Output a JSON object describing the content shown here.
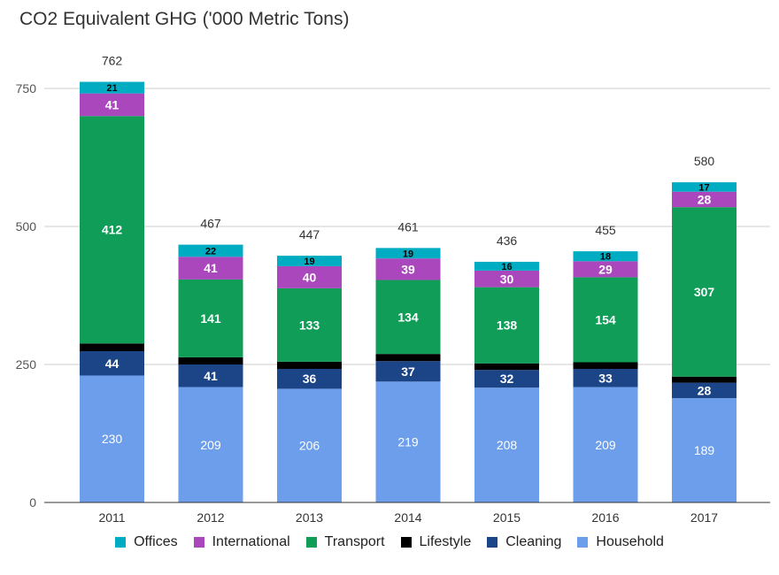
{
  "title": "CO2 Equivalent GHG ('000 Metric Tons)",
  "chart_data": {
    "type": "bar",
    "stacked": true,
    "title": "CO2 Equivalent GHG ('000 Metric Tons)",
    "xlabel": "",
    "ylabel": "",
    "categories": [
      "2011",
      "2012",
      "2013",
      "2014",
      "2015",
      "2016",
      "2017"
    ],
    "ylim": [
      0,
      800
    ],
    "yticks": [
      0,
      250,
      500,
      750
    ],
    "totals": [
      762,
      467,
      447,
      461,
      436,
      455,
      580
    ],
    "series": [
      {
        "name": "Household",
        "color": "#6d9eeb",
        "label_color": "#ffffff",
        "values": [
          230,
          209,
          206,
          219,
          208,
          209,
          189
        ]
      },
      {
        "name": "Cleaning",
        "color": "#1c4587",
        "label_color": "#ffffff",
        "values": [
          44,
          41,
          36,
          37,
          32,
          33,
          28
        ]
      },
      {
        "name": "Lifestyle",
        "color": "#000000",
        "label_color": "#ffffff",
        "values": [
          14,
          13,
          13,
          13,
          12,
          12,
          11
        ]
      },
      {
        "name": "Transport",
        "color": "#0f9d58",
        "label_color": "#ffffff",
        "values": [
          412,
          141,
          133,
          134,
          138,
          154,
          307
        ]
      },
      {
        "name": "International",
        "color": "#ab47bc",
        "label_color": "#ffffff",
        "values": [
          41,
          41,
          40,
          39,
          30,
          29,
          28
        ]
      },
      {
        "name": "Offices",
        "color": "#00acc1",
        "label_color": "#000000",
        "values": [
          21,
          22,
          19,
          19,
          16,
          18,
          17
        ]
      }
    ],
    "legend_order": [
      "Offices",
      "International",
      "Transport",
      "Lifestyle",
      "Cleaning",
      "Household"
    ],
    "legend_position": "bottom",
    "grid": true
  }
}
